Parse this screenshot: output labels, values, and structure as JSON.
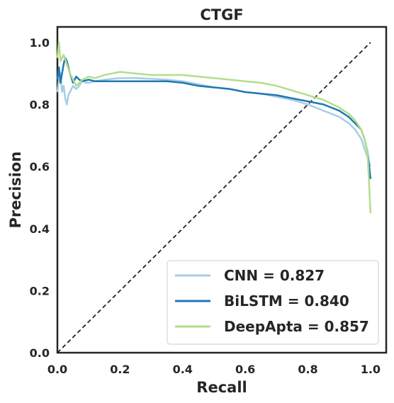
{
  "chart_data": {
    "type": "line",
    "title": "CTGF",
    "xlabel": "Recall",
    "ylabel": "Precision",
    "xlim": [
      0,
      1.05
    ],
    "ylim": [
      0,
      1.05
    ],
    "xticks": [
      "0.0",
      "0.2",
      "0.4",
      "0.6",
      "0.8",
      "1.0"
    ],
    "yticks": [
      "0.0",
      "0.2",
      "0.4",
      "0.6",
      "0.8",
      "1.0"
    ],
    "grid": false,
    "legend_position": "lower-right",
    "diagonal": {
      "x": [
        0,
        1
      ],
      "y": [
        0,
        1
      ],
      "style": "dashed",
      "color": "#222222"
    },
    "series": [
      {
        "name": "CNN = 0.827",
        "color": "#a6cee3",
        "x": [
          0.0,
          0.005,
          0.01,
          0.015,
          0.02,
          0.025,
          0.03,
          0.035,
          0.04,
          0.05,
          0.06,
          0.07,
          0.08,
          0.09,
          0.1,
          0.12,
          0.15,
          0.2,
          0.25,
          0.3,
          0.35,
          0.4,
          0.45,
          0.5,
          0.55,
          0.6,
          0.65,
          0.7,
          0.75,
          0.8,
          0.85,
          0.9,
          0.93,
          0.95,
          0.97,
          0.98,
          0.99,
          1.0
        ],
        "y": [
          0.84,
          0.88,
          0.9,
          0.84,
          0.86,
          0.82,
          0.8,
          0.83,
          0.84,
          0.86,
          0.85,
          0.86,
          0.88,
          0.87,
          0.87,
          0.875,
          0.88,
          0.885,
          0.885,
          0.883,
          0.88,
          0.875,
          0.865,
          0.855,
          0.85,
          0.84,
          0.835,
          0.825,
          0.815,
          0.8,
          0.78,
          0.76,
          0.74,
          0.72,
          0.69,
          0.66,
          0.63,
          0.6
        ]
      },
      {
        "name": "BiLSTM = 0.840",
        "color": "#1f78b4",
        "x": [
          0.0,
          0.005,
          0.01,
          0.015,
          0.02,
          0.025,
          0.03,
          0.035,
          0.04,
          0.05,
          0.06,
          0.07,
          0.08,
          0.1,
          0.12,
          0.15,
          0.2,
          0.25,
          0.3,
          0.35,
          0.4,
          0.45,
          0.5,
          0.55,
          0.6,
          0.65,
          0.7,
          0.75,
          0.8,
          0.85,
          0.9,
          0.93,
          0.95,
          0.97,
          0.98,
          0.99,
          1.0
        ],
        "y": [
          0.88,
          0.92,
          0.87,
          0.9,
          0.93,
          0.95,
          0.94,
          0.92,
          0.9,
          0.87,
          0.89,
          0.88,
          0.875,
          0.88,
          0.875,
          0.875,
          0.875,
          0.875,
          0.875,
          0.875,
          0.87,
          0.86,
          0.855,
          0.85,
          0.84,
          0.835,
          0.83,
          0.82,
          0.81,
          0.8,
          0.78,
          0.76,
          0.74,
          0.72,
          0.69,
          0.65,
          0.56
        ]
      },
      {
        "name": "DeepApta = 0.857",
        "color": "#b2df8a",
        "x": [
          0.0,
          0.005,
          0.01,
          0.015,
          0.02,
          0.03,
          0.04,
          0.05,
          0.06,
          0.07,
          0.08,
          0.1,
          0.12,
          0.15,
          0.2,
          0.25,
          0.3,
          0.35,
          0.4,
          0.45,
          0.5,
          0.55,
          0.6,
          0.65,
          0.7,
          0.75,
          0.8,
          0.85,
          0.9,
          0.93,
          0.95,
          0.97,
          0.98,
          0.99,
          0.995,
          1.0
        ],
        "y": [
          0.95,
          1.0,
          0.94,
          0.95,
          0.96,
          0.93,
          0.9,
          0.88,
          0.86,
          0.87,
          0.88,
          0.89,
          0.885,
          0.895,
          0.905,
          0.9,
          0.895,
          0.895,
          0.895,
          0.89,
          0.885,
          0.88,
          0.875,
          0.87,
          0.86,
          0.845,
          0.83,
          0.815,
          0.79,
          0.77,
          0.75,
          0.72,
          0.69,
          0.65,
          0.55,
          0.45
        ]
      }
    ]
  }
}
